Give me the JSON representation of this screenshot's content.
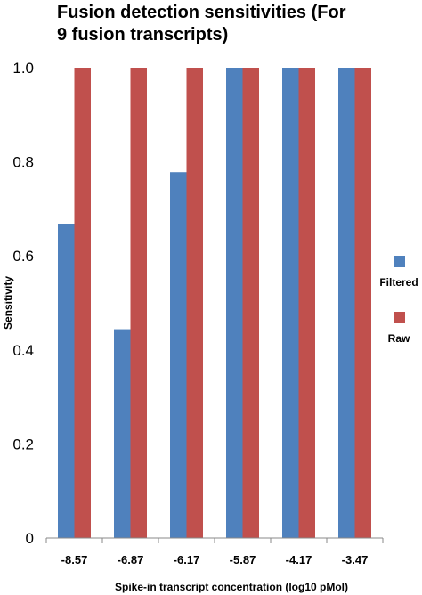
{
  "chart_data": {
    "type": "bar",
    "title_lines": [
      "Fusion detection sensitivities (For",
      "9 fusion transcripts)"
    ],
    "xlabel": "Spike-in transcript concentration (log10 pMol)",
    "ylabel": "Sensitivity",
    "categories": [
      "-8.57",
      "-6.87",
      "-6.17",
      "-5.87",
      "-4.17",
      "-3.47"
    ],
    "series": [
      {
        "name": "Filtered",
        "color": "#4f81bd",
        "values": [
          0.667,
          0.444,
          0.778,
          1.0,
          1.0,
          1.0
        ]
      },
      {
        "name": "Raw",
        "color": "#c0504d",
        "values": [
          1.0,
          1.0,
          1.0,
          1.0,
          1.0,
          1.0
        ]
      }
    ],
    "yticks": [
      "0",
      "0.2",
      "0.4",
      "0.6",
      "0.8",
      "1.0"
    ],
    "ytick_values": [
      0,
      0.2,
      0.4,
      0.6,
      0.8,
      1.0
    ],
    "ylim": [
      0,
      1.0
    ],
    "grid": false,
    "legend_position": "right"
  }
}
